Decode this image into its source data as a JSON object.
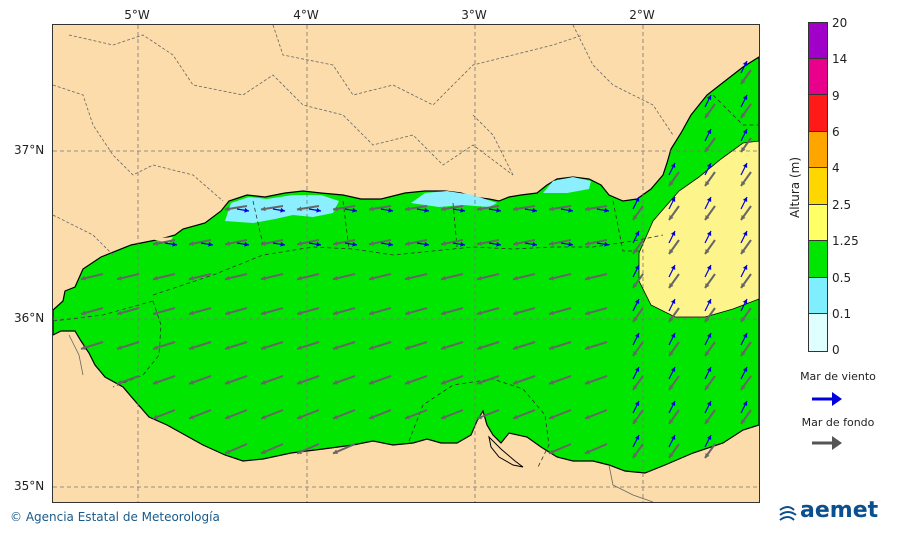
{
  "map": {
    "lon_ticks": [
      "5°W",
      "4°W",
      "3°W",
      "2°W"
    ],
    "lat_ticks": [
      "37°N",
      "36°N",
      "35°N"
    ],
    "colors": {
      "land": "#fbdcaa",
      "sea_green": "#00e600",
      "sea_yellow": "#fdf58c",
      "sea_cyan": "#8cefff",
      "wind_arrow": "#0000dd",
      "swell_arrow": "#666666"
    }
  },
  "legend": {
    "title": "Altura (m)",
    "ticks": [
      "20",
      "14",
      "9",
      "6",
      "4",
      "2.5",
      "1.25",
      "0.5",
      "0.1",
      "0"
    ],
    "bands": [
      {
        "color": "#a000c8"
      },
      {
        "color": "#e8008c"
      },
      {
        "color": "#ff1a1a"
      },
      {
        "color": "#ffa500"
      },
      {
        "color": "#ffd700"
      },
      {
        "color": "#ffff66"
      },
      {
        "color": "#00e600"
      },
      {
        "color": "#7fefff"
      },
      {
        "color": "#dfffff"
      }
    ],
    "wind_sea_label": "Mar de viento",
    "swell_label": "Mar de fondo"
  },
  "footer": {
    "credit": "© Agencia Estatal de Meteorología",
    "logo_text": "aemet"
  }
}
